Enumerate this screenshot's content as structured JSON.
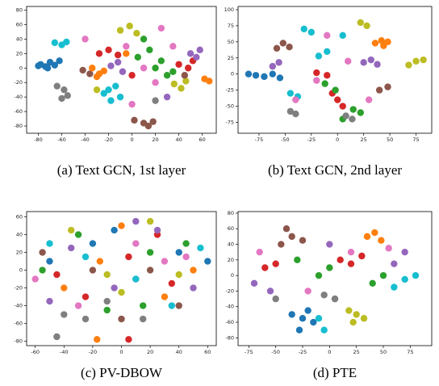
{
  "chart_data": [
    {
      "type": "scatter",
      "caption": "(a) Text GCN, 1st layer",
      "xlim": [
        -90,
        72
      ],
      "ylim": [
        -90,
        85
      ],
      "xticks": [
        -80,
        -60,
        -40,
        -20,
        0,
        20,
        40,
        60
      ],
      "yticks": [
        -80,
        -60,
        -40,
        -20,
        0,
        20,
        40,
        60,
        80
      ],
      "series": [
        {
          "color": "#1f77b4",
          "x": [
            -78,
            -74,
            -70,
            -66,
            -62,
            -72,
            -80
          ],
          "y": [
            5,
            2,
            8,
            4,
            10,
            0,
            3
          ]
        },
        {
          "color": "#17becf",
          "x": [
            -66,
            -60,
            -56,
            -20,
            -14,
            -24,
            -10,
            -18
          ],
          "y": [
            35,
            32,
            36,
            -30,
            -25,
            -35,
            -40,
            -45
          ]
        },
        {
          "color": "#7f7f7f",
          "x": [
            -64,
            -58,
            -55,
            -60,
            20
          ],
          "y": [
            -25,
            -30,
            -38,
            -42,
            -45
          ]
        },
        {
          "color": "#bcbd22",
          "x": [
            -10,
            -2,
            4,
            36,
            42,
            46,
            -30
          ],
          "y": [
            52,
            58,
            48,
            -22,
            -28,
            -18,
            -30
          ]
        },
        {
          "color": "#d62728",
          "x": [
            -28,
            -20,
            -12,
            40,
            48,
            52,
            0
          ],
          "y": [
            20,
            25,
            18,
            5,
            0,
            10,
            -10
          ]
        },
        {
          "color": "#2ca02c",
          "x": [
            5,
            15,
            25,
            30,
            35,
            20,
            10
          ],
          "y": [
            15,
            25,
            10,
            -10,
            -5,
            0,
            40
          ]
        },
        {
          "color": "#9467bd",
          "x": [
            -18,
            -12,
            50,
            58,
            55,
            -8,
            30
          ],
          "y": [
            3,
            8,
            20,
            25,
            15,
            -5,
            -40
          ]
        },
        {
          "color": "#e377c2",
          "x": [
            -40,
            10,
            20,
            -5,
            35,
            0,
            25
          ],
          "y": [
            40,
            0,
            -20,
            30,
            30,
            -50,
            55
          ]
        },
        {
          "color": "#8c564b",
          "x": [
            2,
            10,
            18,
            -42,
            -36,
            14,
            45
          ],
          "y": [
            -72,
            -76,
            -74,
            -3,
            -8,
            -80,
            -10
          ]
        },
        {
          "color": "#ff7f0e",
          "x": [
            -34,
            -28,
            -24,
            62,
            66,
            -30,
            -5
          ],
          "y": [
            0,
            -8,
            -4,
            -15,
            -18,
            -12,
            20
          ]
        }
      ]
    },
    {
      "type": "scatter",
      "caption": "(b) Text GCN, 2nd layer",
      "xlim": [
        -95,
        90
      ],
      "ylim": [
        -92,
        105
      ],
      "xticks": [
        -75,
        -50,
        -25,
        0,
        25,
        50,
        75
      ],
      "yticks": [
        -75,
        -50,
        -25,
        0,
        25,
        50,
        75,
        100
      ],
      "series": [
        {
          "color": "#1f77b4",
          "x": [
            -85,
            -78,
            -70,
            -62,
            -55
          ],
          "y": [
            0,
            -2,
            -4,
            0,
            -6
          ]
        },
        {
          "color": "#17becf",
          "x": [
            -45,
            -38,
            -18,
            -10,
            -32,
            -25,
            5
          ],
          "y": [
            -30,
            -35,
            28,
            35,
            70,
            65,
            60
          ]
        },
        {
          "color": "#bcbd22",
          "x": [
            68,
            75,
            82,
            22,
            28
          ],
          "y": [
            14,
            20,
            22,
            80,
            75
          ]
        },
        {
          "color": "#ff7f0e",
          "x": [
            36,
            42,
            48,
            44
          ],
          "y": [
            48,
            52,
            50,
            44
          ]
        },
        {
          "color": "#8c564b",
          "x": [
            -58,
            -52,
            -46,
            40,
            48
          ],
          "y": [
            40,
            48,
            42,
            -25,
            -20
          ]
        },
        {
          "color": "#9467bd",
          "x": [
            25,
            32,
            38,
            -62,
            -56
          ],
          "y": [
            18,
            22,
            15,
            12,
            18
          ]
        },
        {
          "color": "#d62728",
          "x": [
            -20,
            -10,
            0,
            -5,
            5
          ],
          "y": [
            2,
            -2,
            -40,
            -30,
            -50
          ]
        },
        {
          "color": "#2ca02c",
          "x": [
            -12,
            -2,
            15,
            22,
            5
          ],
          "y": [
            -15,
            -25,
            -55,
            -60,
            -70
          ]
        },
        {
          "color": "#e377c2",
          "x": [
            -40,
            -20,
            30,
            10,
            -10
          ],
          "y": [
            -40,
            -10,
            -40,
            20,
            60
          ]
        },
        {
          "color": "#7f7f7f",
          "x": [
            8,
            14,
            -45,
            -40
          ],
          "y": [
            -65,
            -70,
            -58,
            -62
          ]
        }
      ]
    },
    {
      "type": "scatter",
      "caption": "(c) PV-DBOW",
      "xlim": [
        -66,
        66
      ],
      "ylim": [
        -85,
        66
      ],
      "xticks": [
        -60,
        -40,
        -20,
        0,
        20,
        40,
        60
      ],
      "yticks": [
        -80,
        -60,
        -40,
        -20,
        0,
        20,
        40,
        60
      ],
      "series": [
        {
          "color": "#1f77b4",
          "x": [
            -50,
            -20,
            10,
            40,
            60,
            -5
          ],
          "y": [
            10,
            30,
            -10,
            20,
            10,
            45
          ]
        },
        {
          "color": "#ff7f0e",
          "x": [
            -40,
            0,
            30,
            -15,
            50,
            -17
          ],
          "y": [
            -20,
            50,
            -30,
            10,
            0,
            -78
          ]
        },
        {
          "color": "#2ca02c",
          "x": [
            -30,
            15,
            45,
            -10,
            20,
            -55
          ],
          "y": [
            40,
            -40,
            30,
            -45,
            20,
            0
          ]
        },
        {
          "color": "#d62728",
          "x": [
            -45,
            5,
            35,
            -25,
            25,
            5
          ],
          "y": [
            -5,
            15,
            -15,
            -30,
            40,
            -78
          ]
        },
        {
          "color": "#9467bd",
          "x": [
            -35,
            -5,
            25,
            50,
            -50,
            10
          ],
          "y": [
            25,
            -20,
            45,
            -20,
            -35,
            55
          ]
        },
        {
          "color": "#8c564b",
          "x": [
            -20,
            20,
            -55,
            40,
            0
          ],
          "y": [
            0,
            0,
            20,
            -40,
            -55
          ]
        },
        {
          "color": "#e377c2",
          "x": [
            -60,
            -30,
            10,
            30,
            45
          ],
          "y": [
            -10,
            -40,
            30,
            10,
            15
          ]
        },
        {
          "color": "#7f7f7f",
          "x": [
            -40,
            -25,
            15,
            -45,
            -10
          ],
          "y": [
            -50,
            -55,
            -55,
            -75,
            -35
          ]
        },
        {
          "color": "#bcbd22",
          "x": [
            -10,
            20,
            40,
            -35,
            0
          ],
          "y": [
            -5,
            55,
            -5,
            45,
            -25
          ]
        },
        {
          "color": "#17becf",
          "x": [
            -25,
            10,
            35,
            -50,
            55
          ],
          "y": [
            15,
            -10,
            -40,
            30,
            25
          ]
        }
      ]
    },
    {
      "type": "scatter",
      "caption": "(d) PTE",
      "xlim": [
        -85,
        95
      ],
      "ylim": [
        -90,
        82
      ],
      "xticks": [
        -75,
        -50,
        -25,
        0,
        25,
        50,
        75
      ],
      "yticks": [
        -80,
        -60,
        -40,
        -20,
        0,
        20,
        40,
        60,
        80
      ],
      "series": [
        {
          "color": "#1f77b4",
          "x": [
            -35,
            -25,
            -15,
            -28,
            -20
          ],
          "y": [
            -50,
            -55,
            -60,
            -70,
            -45
          ]
        },
        {
          "color": "#bcbd22",
          "x": [
            18,
            25,
            32,
            22
          ],
          "y": [
            -45,
            -50,
            -55,
            -60
          ]
        },
        {
          "color": "#ff7f0e",
          "x": [
            35,
            42,
            48
          ],
          "y": [
            50,
            55,
            45
          ]
        },
        {
          "color": "#8c564b",
          "x": [
            -45,
            -35,
            -25,
            -40
          ],
          "y": [
            40,
            50,
            45,
            60
          ]
        },
        {
          "color": "#d62728",
          "x": [
            -60,
            -50,
            10,
            20,
            30
          ],
          "y": [
            10,
            15,
            20,
            15,
            25
          ]
        },
        {
          "color": "#2ca02c",
          "x": [
            -10,
            0,
            40,
            50,
            -30
          ],
          "y": [
            0,
            10,
            -10,
            0,
            20
          ]
        },
        {
          "color": "#9467bd",
          "x": [
            -70,
            -55,
            60,
            70,
            0
          ],
          "y": [
            -10,
            -20,
            15,
            30,
            40
          ]
        },
        {
          "color": "#e377c2",
          "x": [
            -20,
            20,
            -65,
            5,
            55
          ],
          "y": [
            -20,
            30,
            30,
            -30,
            35
          ]
        },
        {
          "color": "#7f7f7f",
          "x": [
            -5,
            5,
            -50
          ],
          "y": [
            -25,
            -30,
            -30
          ]
        },
        {
          "color": "#17becf",
          "x": [
            60,
            70,
            80,
            -10,
            -5
          ],
          "y": [
            -15,
            -5,
            0,
            -55,
            -70
          ]
        }
      ]
    }
  ]
}
